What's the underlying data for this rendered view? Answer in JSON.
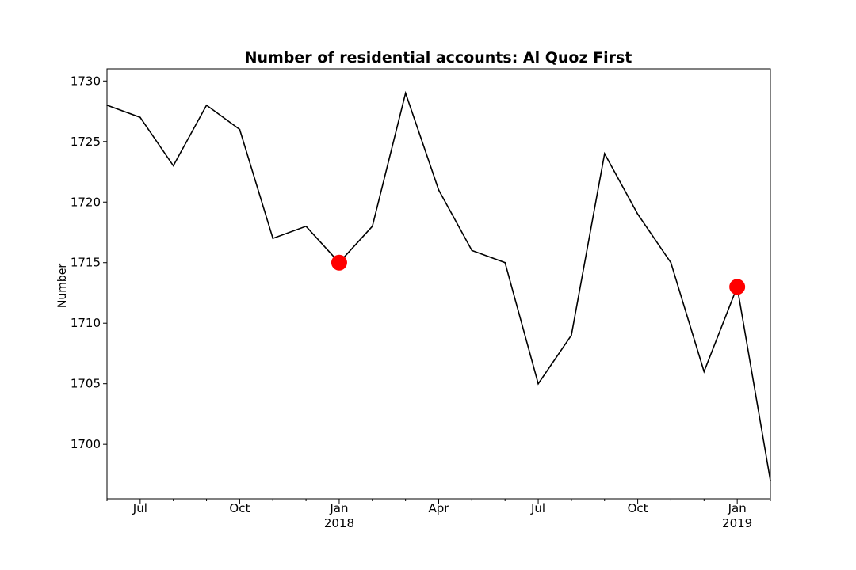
{
  "chart_data": {
    "type": "line",
    "title": "Number of residential accounts: Al Quoz First",
    "xlabel": "",
    "ylabel": "Number",
    "ylim": [
      1695.5,
      1731
    ],
    "xlim": [
      "2017-06",
      "2019-02"
    ],
    "grid": false,
    "y_ticks": [
      1700,
      1705,
      1710,
      1715,
      1720,
      1725,
      1730
    ],
    "x_tick_labels": [
      {
        "date": "2017-07",
        "label": "Jul",
        "sublabel": ""
      },
      {
        "date": "2017-10",
        "label": "Oct",
        "sublabel": ""
      },
      {
        "date": "2018-01",
        "label": "Jan",
        "sublabel": "2018"
      },
      {
        "date": "2018-04",
        "label": "Apr",
        "sublabel": ""
      },
      {
        "date": "2018-07",
        "label": "Jul",
        "sublabel": ""
      },
      {
        "date": "2018-10",
        "label": "Oct",
        "sublabel": ""
      },
      {
        "date": "2019-01",
        "label": "Jan",
        "sublabel": "2019"
      }
    ],
    "series": [
      {
        "color": "#000000",
        "x": [
          "2017-06",
          "2017-07",
          "2017-08",
          "2017-09",
          "2017-10",
          "2017-11",
          "2017-12",
          "2018-01",
          "2018-02",
          "2018-03",
          "2018-04",
          "2018-05",
          "2018-06",
          "2018-07",
          "2018-08",
          "2018-09",
          "2018-10",
          "2018-11",
          "2018-12",
          "2019-01",
          "2019-02"
        ],
        "values": [
          1728,
          1727,
          1723,
          1728,
          1726,
          1717,
          1718,
          1715,
          1718,
          1729,
          1721,
          1716,
          1715,
          1705,
          1709,
          1724,
          1719,
          1715,
          1706,
          1713,
          1697
        ]
      }
    ],
    "highlights": {
      "color": "#ff0000",
      "x": [
        "2018-01",
        "2019-01"
      ],
      "values": [
        1715,
        1713
      ]
    }
  }
}
